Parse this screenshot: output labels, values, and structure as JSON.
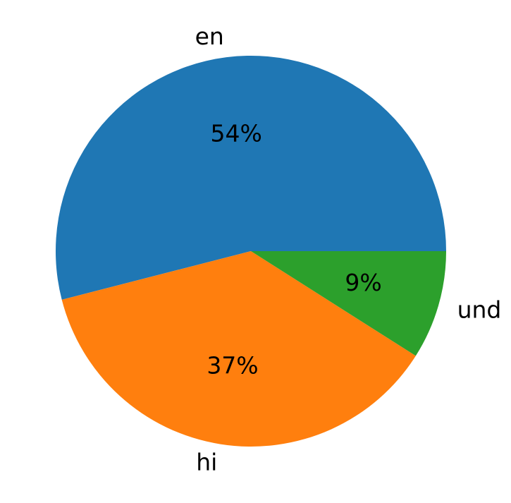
{
  "chart_data": {
    "type": "pie",
    "categories": [
      "en",
      "hi",
      "und"
    ],
    "values": [
      54,
      37,
      9
    ],
    "value_labels": [
      "54%",
      "37%",
      "9%"
    ],
    "colors": [
      "#1f77b4",
      "#ff7f0e",
      "#2ca02c"
    ],
    "start_angle": 0,
    "counterclockwise": true
  }
}
